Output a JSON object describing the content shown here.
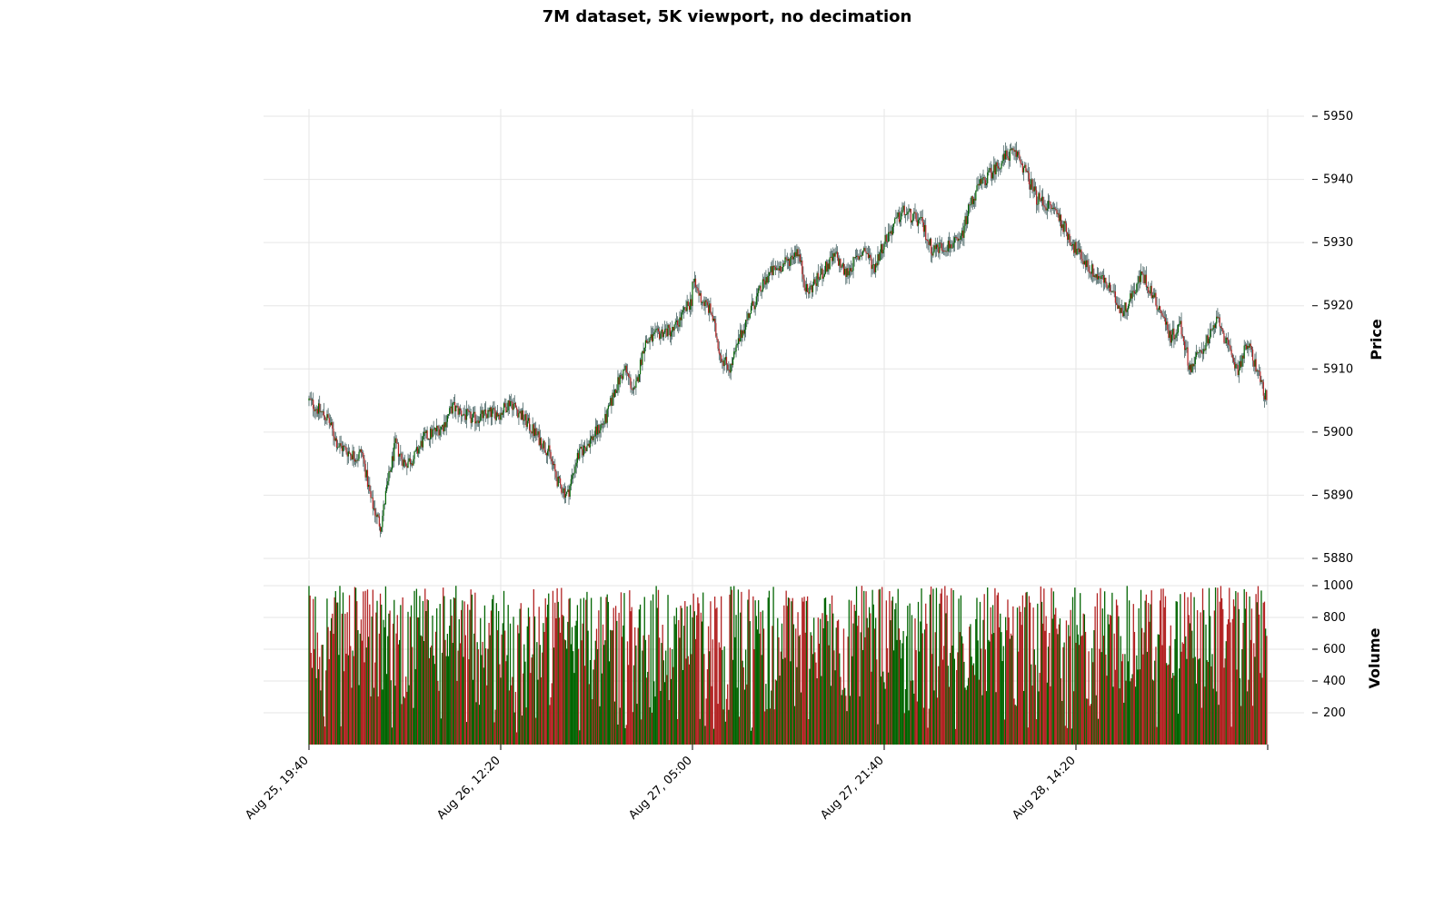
{
  "chart_data": {
    "type": "candlestick",
    "title": "7M dataset, 5K viewport, no decimation",
    "price_panel": {
      "ylabel": "Price",
      "ylim": [
        5880,
        5950
      ],
      "yticks": [
        5880,
        5890,
        5900,
        5910,
        5920,
        5930,
        5940,
        5950
      ],
      "grid": true
    },
    "volume_panel": {
      "ylabel": "Volume",
      "ylim": [
        0,
        1000
      ],
      "yticks": [
        200,
        400,
        600,
        800,
        1000
      ],
      "grid": true
    },
    "xtick_labels": [
      "Aug 25, 19:40",
      "Aug 26, 12:20",
      "Aug 27, 05:00",
      "Aug 27, 21:40",
      "Aug 28, 14:20"
    ],
    "colors": {
      "up": "#006400",
      "down": "#b22222",
      "wick": "#2f4f4f",
      "grid": "#e6e6e6"
    },
    "price_path": [
      [
        0,
        5905
      ],
      [
        0.02,
        5902
      ],
      [
        0.03,
        5898
      ],
      [
        0.05,
        5896
      ],
      [
        0.055,
        5897
      ],
      [
        0.06,
        5893
      ],
      [
        0.065,
        5889
      ],
      [
        0.07,
        5887
      ],
      [
        0.075,
        5885
      ],
      [
        0.08,
        5890
      ],
      [
        0.09,
        5898
      ],
      [
        0.1,
        5895
      ],
      [
        0.11,
        5896
      ],
      [
        0.12,
        5899
      ],
      [
        0.14,
        5901
      ],
      [
        0.15,
        5904
      ],
      [
        0.17,
        5902
      ],
      [
        0.19,
        5903
      ],
      [
        0.2,
        5903
      ],
      [
        0.21,
        5905
      ],
      [
        0.22,
        5903
      ],
      [
        0.24,
        5899
      ],
      [
        0.25,
        5897
      ],
      [
        0.26,
        5892
      ],
      [
        0.27,
        5890
      ],
      [
        0.28,
        5896
      ],
      [
        0.3,
        5900
      ],
      [
        0.31,
        5902
      ],
      [
        0.32,
        5907
      ],
      [
        0.33,
        5910
      ],
      [
        0.34,
        5906
      ],
      [
        0.35,
        5914
      ],
      [
        0.37,
        5916
      ],
      [
        0.38,
        5916
      ],
      [
        0.4,
        5921
      ],
      [
        0.4,
        5924
      ],
      [
        0.41,
        5921
      ],
      [
        0.42,
        5919
      ],
      [
        0.43,
        5912
      ],
      [
        0.44,
        5910
      ],
      [
        0.45,
        5915
      ],
      [
        0.46,
        5919
      ],
      [
        0.48,
        5925
      ],
      [
        0.5,
        5927
      ],
      [
        0.51,
        5929
      ],
      [
        0.52,
        5922
      ],
      [
        0.53,
        5924
      ],
      [
        0.55,
        5928
      ],
      [
        0.56,
        5925
      ],
      [
        0.58,
        5929
      ],
      [
        0.59,
        5926
      ],
      [
        0.6,
        5930
      ],
      [
        0.62,
        5935
      ],
      [
        0.64,
        5933
      ],
      [
        0.65,
        5929
      ],
      [
        0.68,
        5930
      ],
      [
        0.69,
        5936
      ],
      [
        0.7,
        5939
      ],
      [
        0.73,
        5944
      ],
      [
        0.74,
        5944
      ],
      [
        0.76,
        5937
      ],
      [
        0.78,
        5935
      ],
      [
        0.8,
        5929
      ],
      [
        0.82,
        5925
      ],
      [
        0.83,
        5924
      ],
      [
        0.85,
        5919
      ],
      [
        0.86,
        5922
      ],
      [
        0.87,
        5925
      ],
      [
        0.89,
        5919
      ],
      [
        0.9,
        5915
      ],
      [
        0.91,
        5917
      ],
      [
        0.92,
        5910
      ],
      [
        0.94,
        5915
      ],
      [
        0.95,
        5918
      ],
      [
        0.96,
        5913
      ],
      [
        0.97,
        5910
      ],
      [
        0.98,
        5914
      ],
      [
        0.99,
        5910
      ],
      [
        1,
        5905
      ]
    ]
  }
}
